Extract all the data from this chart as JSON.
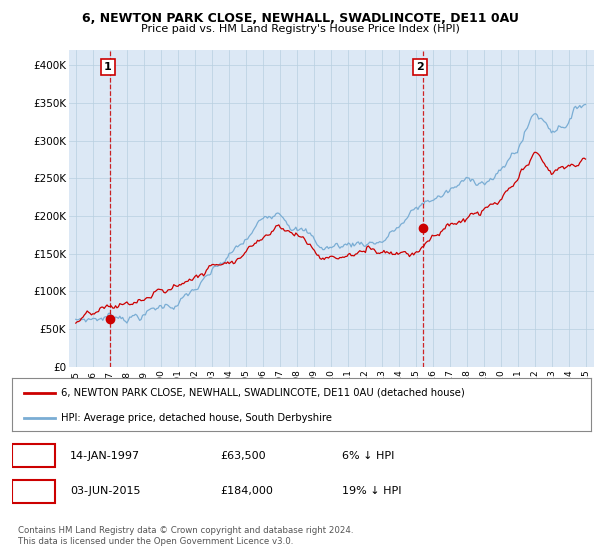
{
  "title_line1": "6, NEWTON PARK CLOSE, NEWHALL, SWADLINCOTE, DE11 0AU",
  "title_line2": "Price paid vs. HM Land Registry's House Price Index (HPI)",
  "legend_line1": "6, NEWTON PARK CLOSE, NEWHALL, SWADLINCOTE, DE11 0AU (detached house)",
  "legend_line2": "HPI: Average price, detached house, South Derbyshire",
  "annotation1_date": "14-JAN-1997",
  "annotation1_price": "£63,500",
  "annotation1_hpi": "6% ↓ HPI",
  "annotation2_date": "03-JUN-2015",
  "annotation2_price": "£184,000",
  "annotation2_hpi": "19% ↓ HPI",
  "copyright_text": "Contains HM Land Registry data © Crown copyright and database right 2024.\nThis data is licensed under the Open Government Licence v3.0.",
  "ylim": [
    0,
    420000
  ],
  "yticks": [
    0,
    50000,
    100000,
    150000,
    200000,
    250000,
    300000,
    350000,
    400000
  ],
  "ytick_labels": [
    "£0",
    "£50K",
    "£100K",
    "£150K",
    "£200K",
    "£250K",
    "£300K",
    "£350K",
    "£400K"
  ],
  "sale1_year": 1997.04,
  "sale1_price": 63500,
  "sale2_year": 2015.42,
  "sale2_price": 184000,
  "line_color_property": "#cc0000",
  "line_color_hpi": "#7aadd4",
  "annotation_box_color": "#cc0000",
  "vline_color": "#cc0000",
  "chart_bg_color": "#dce8f5",
  "background_color": "#ffffff",
  "grid_color": "#b8cfe0"
}
